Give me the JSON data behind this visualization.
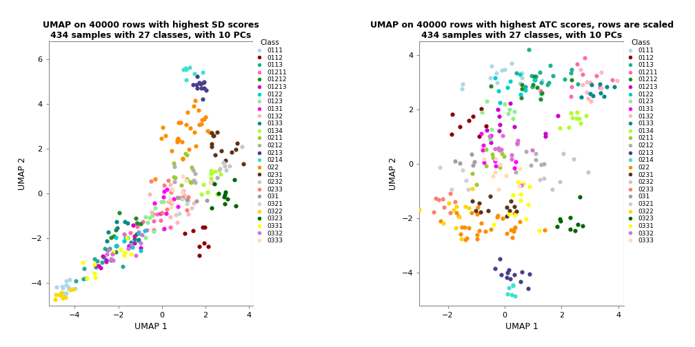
{
  "title1": "UMAP on 40000 rows with highest SD scores\n434 samples with 27 classes, with 10 PCs",
  "title2": "UMAP on 40000 rows with highest ATC scores, rows are scaled\n434 samples with 27 classes, with 10 PCs",
  "xlabel": "UMAP 1",
  "ylabel": "UMAP 2",
  "legend_title": "Class",
  "classes": [
    "0111",
    "0112",
    "0113",
    "01211",
    "01212",
    "01213",
    "0122",
    "0123",
    "0131",
    "0132",
    "0133",
    "0134",
    "0211",
    "0212",
    "0213",
    "0214",
    "022",
    "0231",
    "0232",
    "0233",
    "031",
    "0321",
    "0322",
    "0323",
    "0331",
    "0332",
    "0333"
  ],
  "class_colors": {
    "0111": "#ADD8E6",
    "0112": "#8B0000",
    "0113": "#20B090",
    "01211": "#FF69B4",
    "01212": "#228B22",
    "01213": "#CC00CC",
    "0122": "#00CED1",
    "0123": "#90EE90",
    "0131": "#FF00FF",
    "0132": "#FFB6C1",
    "0133": "#008B8B",
    "0134": "#ADFF2F",
    "0211": "#9ACD32",
    "0212": "#B0B0B0",
    "0213": "#483D8B",
    "0214": "#40E0D0",
    "022": "#FF8C00",
    "0231": "#5C3317",
    "0232": "#C8C8C8",
    "0233": "#FA8072",
    "031": "#A0A0A0",
    "0321": "#D0D0D0",
    "0322": "#FFD700",
    "0323": "#006400",
    "0331": "#FFFF00",
    "0332": "#DA70D6",
    "0333": "#FFDAB9"
  },
  "plot1_xlim": [
    -5.2,
    4.2
  ],
  "plot1_ylim": [
    -5.0,
    6.8
  ],
  "plot1_xticks": [
    -4,
    -2,
    0,
    2,
    4
  ],
  "plot1_yticks": [
    -4,
    -2,
    0,
    2,
    4,
    6
  ],
  "plot2_xlim": [
    -3.0,
    4.2
  ],
  "plot2_ylim": [
    -5.2,
    4.5
  ],
  "plot2_xticks": [
    -2,
    0,
    2,
    4
  ],
  "plot2_yticks": [
    -4,
    -2,
    0,
    2,
    4
  ]
}
